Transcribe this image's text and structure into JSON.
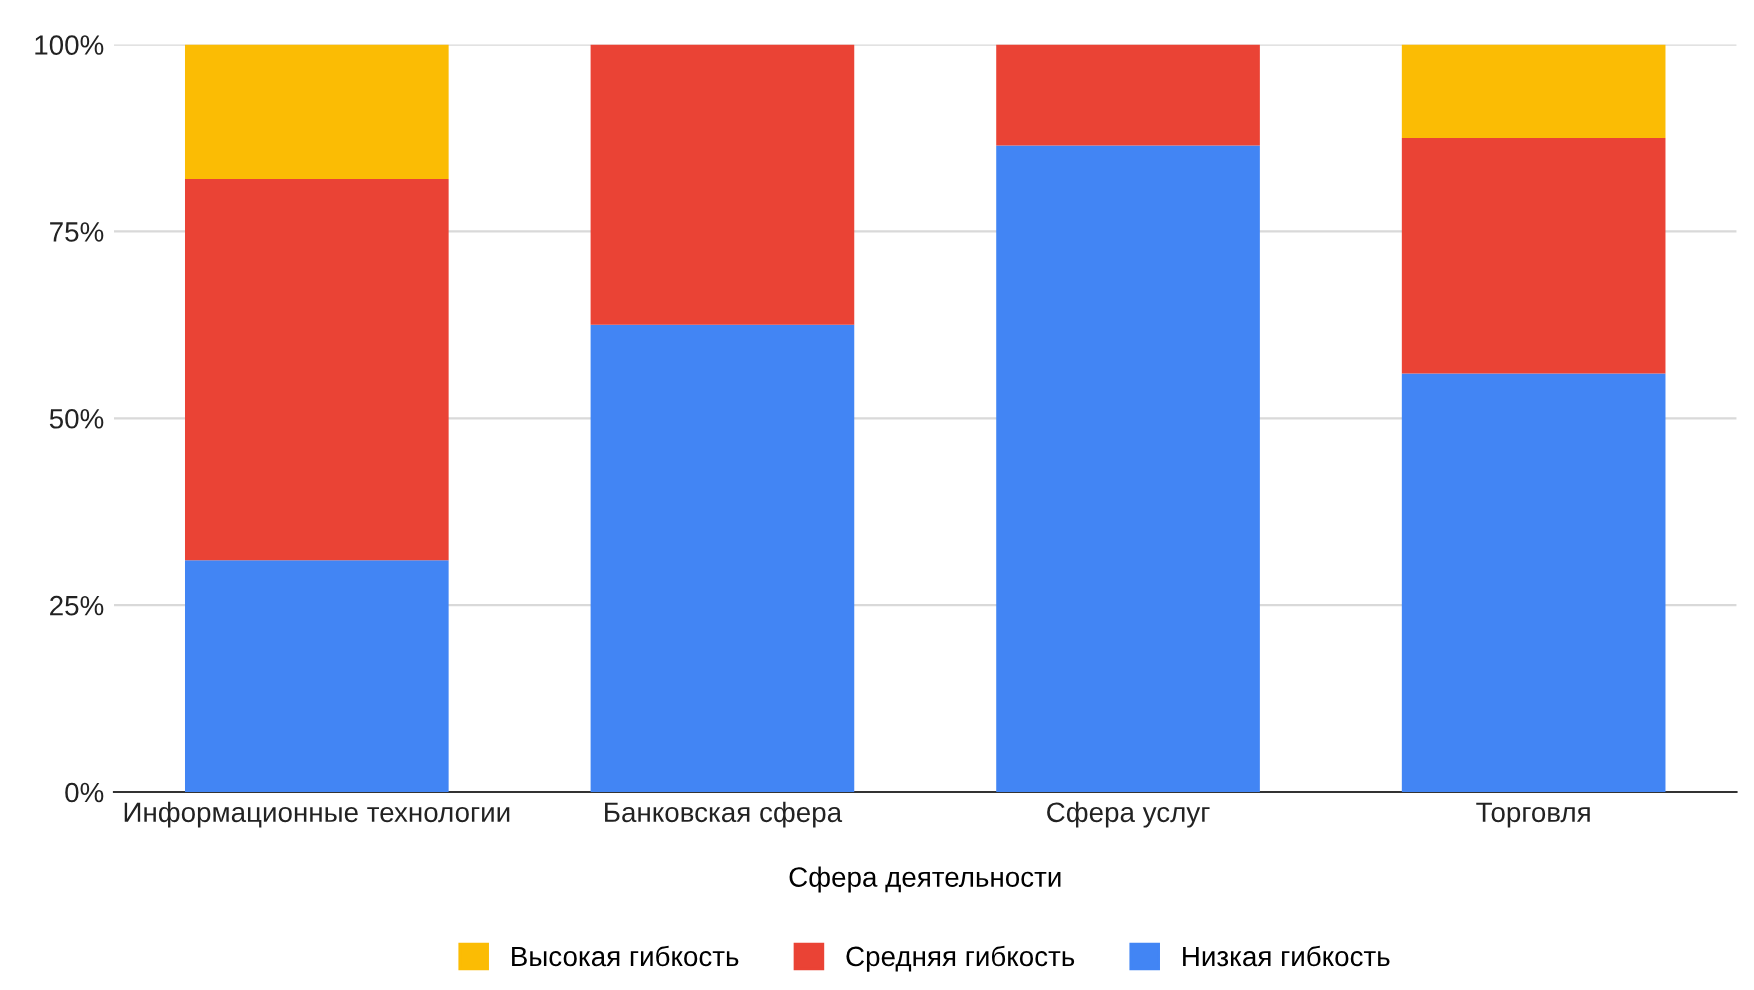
{
  "chart_data": {
    "type": "bar",
    "stacked": true,
    "xlabel": "Сфера деятельности",
    "categories": [
      "Информационные технологии",
      "Банковская сфера",
      "Сфера услуг",
      "Торговля"
    ],
    "series": [
      {
        "name": "Низкая гибкость",
        "color": "#4285f4",
        "values": [
          31,
          62.5,
          86.5,
          56
        ]
      },
      {
        "name": "Средняя гибкость",
        "color": "#ea4335",
        "values": [
          51,
          37.5,
          13.5,
          31.5
        ]
      },
      {
        "name": "Высокая гибкость",
        "color": "#fbbc04",
        "values": [
          18,
          0,
          0,
          12.5
        ]
      }
    ],
    "ylim": [
      0,
      100
    ],
    "yticks": [
      {
        "value": 0,
        "label": "0%"
      },
      {
        "value": 25,
        "label": "25%"
      },
      {
        "value": 50,
        "label": "50%"
      },
      {
        "value": 75,
        "label": "75%"
      },
      {
        "value": 100,
        "label": "100%"
      }
    ],
    "grid": "y",
    "legend": "bottom"
  }
}
